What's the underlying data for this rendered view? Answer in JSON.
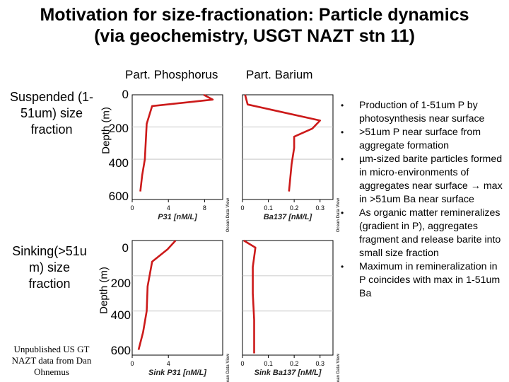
{
  "title_line1": "Motivation for size-fractionation: Particle dynamics",
  "title_line2": "(via geochemistry, USGT NAZT stn 11)",
  "col_heads": [
    "Part. Phosphorus",
    "Part. Barium"
  ],
  "rows": [
    {
      "label_lines": [
        "Suspended (1-",
        "51um) size",
        "fraction"
      ],
      "depth_label": "Depth (m)",
      "yticks": [
        "0",
        "200",
        "400",
        "600"
      ]
    },
    {
      "label_lines": [
        "Sinking(>51u",
        "m) size",
        "fraction"
      ],
      "depth_label": "Depth (m)",
      "yticks": [
        "0",
        "200",
        "400",
        "600"
      ]
    }
  ],
  "credit": "Unpublished US GT NAZT data from Dan Ohnemus",
  "bullets": [
    "Production of 1-51um P by photosynthesis near surface",
    ">51um P near surface from aggregate formation",
    "µm-sized barite particles formed in micro-environments of aggregates near surface → max in >51um Ba near surface",
    "As organic matter remineralizes (gradient in P), aggregates fragment and release barite into small size fraction",
    "Maximum in remineralization in P coincides with max in 1-51um Ba"
  ],
  "chart_data": [
    {
      "type": "line",
      "xlabel": "P31 [nM/L]",
      "ylabel": "Depth (m)",
      "xticks": [
        "0",
        "4",
        "8"
      ],
      "xlim": [
        0,
        10
      ],
      "ylim": [
        650,
        0
      ],
      "side_label": "Ocean Data View",
      "line_color": "#cc1a1a",
      "x": [
        7.9,
        8.9,
        2.2,
        1.6,
        1.4,
        1.1,
        0.9
      ],
      "y": [
        0,
        30,
        70,
        180,
        400,
        500,
        600
      ]
    },
    {
      "type": "line",
      "xlabel": "Ba137 [nM/L]",
      "ylabel": "Depth (m)",
      "xticks": [
        "0",
        "0.1",
        "0.2",
        "0.3"
      ],
      "xlim": [
        0,
        0.35
      ],
      "ylim": [
        650,
        0
      ],
      "side_label": "Ocean Data View",
      "line_color": "#cc1a1a",
      "x": [
        0.01,
        0.02,
        0.3,
        0.27,
        0.2,
        0.2,
        0.19,
        0.18
      ],
      "y": [
        0,
        60,
        160,
        210,
        260,
        330,
        430,
        600
      ]
    },
    {
      "type": "line",
      "xlabel": "Sink P31 [nM/L]",
      "ylabel": "Depth (m)",
      "xticks": [
        "0",
        "4"
      ],
      "xlim": [
        0,
        10
      ],
      "ylim": [
        650,
        0
      ],
      "side_label": "Ocean Data View",
      "line_color": "#cc1a1a",
      "x": [
        4.8,
        3.9,
        2.2,
        1.7,
        1.6,
        1.2,
        0.7
      ],
      "y": [
        0,
        50,
        120,
        260,
        400,
        520,
        620
      ]
    },
    {
      "type": "line",
      "xlabel": "Sink Ba137 [nM/L]",
      "ylabel": "Depth (m)",
      "xticks": [
        "0",
        "0.1",
        "0.2",
        "0.3"
      ],
      "xlim": [
        0,
        0.35
      ],
      "ylim": [
        650,
        0
      ],
      "side_label": "Ocean Data View",
      "line_color": "#cc1a1a",
      "x": [
        0.005,
        0.05,
        0.04,
        0.04,
        0.045,
        0.045
      ],
      "y": [
        0,
        40,
        150,
        300,
        450,
        640
      ]
    }
  ]
}
